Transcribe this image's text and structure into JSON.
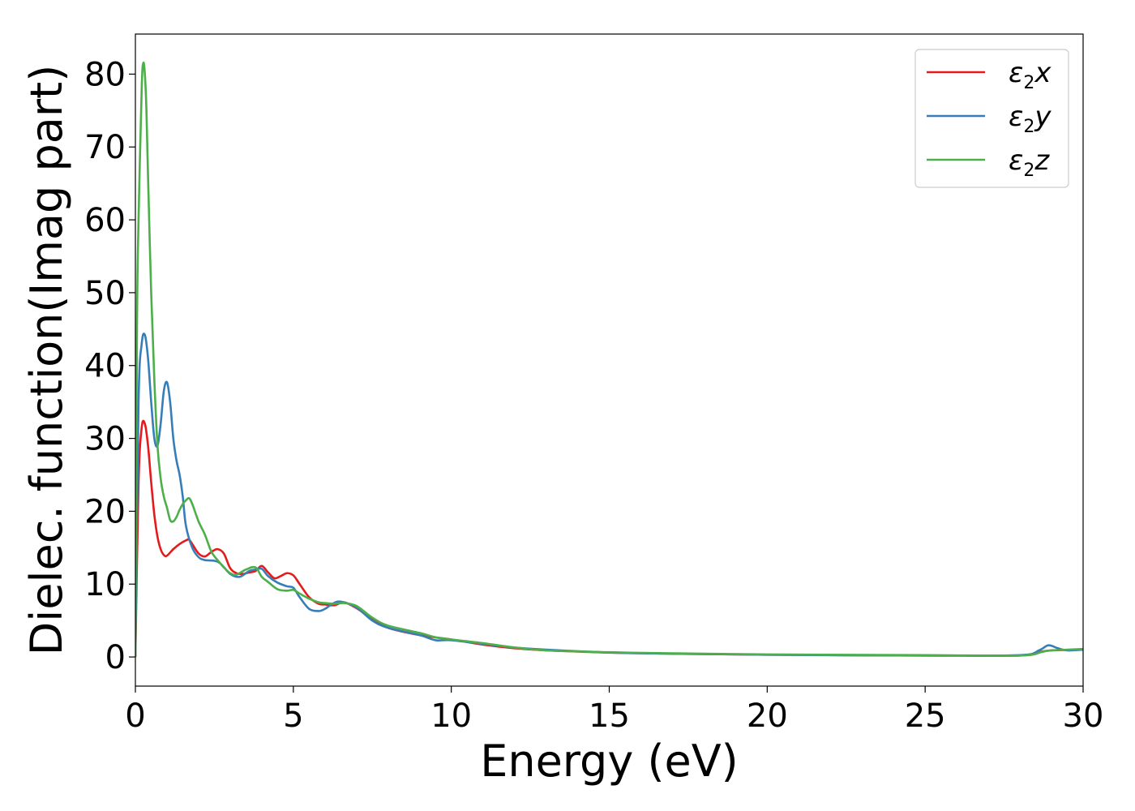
{
  "chart_data": {
    "type": "line",
    "title": "",
    "xlabel": "Energy (eV)",
    "ylabel": "Dielec. function(Imag part)",
    "xlim": [
      0,
      30
    ],
    "ylim": [
      -4,
      85.5
    ],
    "xticks": [
      0,
      5,
      10,
      15,
      20,
      25,
      30
    ],
    "yticks": [
      0,
      10,
      20,
      30,
      40,
      50,
      60,
      70,
      80
    ],
    "grid": false,
    "legend_position": "top-right",
    "series": [
      {
        "name": "ε2x",
        "legend": {
          "sym": "ε",
          "sub": "2",
          "axis": "x"
        },
        "color": "#e41a1c",
        "x": [
          0,
          0.1,
          0.2,
          0.3,
          0.4,
          0.5,
          0.6,
          0.7,
          0.8,
          0.9,
          1.0,
          1.2,
          1.4,
          1.6,
          1.7,
          1.8,
          2.0,
          2.2,
          2.4,
          2.6,
          2.8,
          3.0,
          3.2,
          3.4,
          3.6,
          3.8,
          4.0,
          4.2,
          4.4,
          4.6,
          4.8,
          5.0,
          5.2,
          5.5,
          5.8,
          6.0,
          6.3,
          6.6,
          7.0,
          7.5,
          8.0,
          9.0,
          10.0,
          11.0,
          12.0,
          13.0,
          15.0,
          17.0,
          20.0,
          25.0,
          28.0,
          28.5,
          29.0,
          30.0
        ],
        "y": [
          0,
          24,
          31.5,
          32,
          29,
          24,
          19.5,
          16.5,
          14.8,
          14,
          13.9,
          14.8,
          15.5,
          16,
          16.1,
          15.5,
          14.2,
          13.8,
          14.4,
          14.8,
          14.2,
          12.2,
          11.5,
          11.4,
          11.6,
          11.8,
          12.5,
          11.6,
          10.8,
          11.1,
          11.5,
          11.2,
          10.0,
          8.2,
          7.3,
          7.2,
          7.1,
          7.5,
          6.7,
          5.2,
          4.0,
          3.0,
          2.4,
          1.7,
          1.2,
          0.9,
          0.6,
          0.45,
          0.3,
          0.2,
          0.2,
          0.6,
          0.9,
          1.0
        ]
      },
      {
        "name": "ε2y",
        "legend": {
          "sym": "ε",
          "sub": "2",
          "axis": "y"
        },
        "color": "#377eb8",
        "x": [
          0,
          0.1,
          0.2,
          0.3,
          0.4,
          0.5,
          0.6,
          0.7,
          0.8,
          0.9,
          1.0,
          1.1,
          1.2,
          1.3,
          1.4,
          1.5,
          1.6,
          1.8,
          2.0,
          2.2,
          2.5,
          2.7,
          3.0,
          3.3,
          3.6,
          3.8,
          4.0,
          4.2,
          4.5,
          4.8,
          5.0,
          5.2,
          5.5,
          5.8,
          6.0,
          6.2,
          6.4,
          6.6,
          7.0,
          7.5,
          8.0,
          9.0,
          9.5,
          10.0,
          11.0,
          12.0,
          13.0,
          15.0,
          17.0,
          20.0,
          25.0,
          28.0,
          28.6,
          28.9,
          29.2,
          29.5,
          30.0
        ],
        "y": [
          0,
          35,
          43,
          44.2,
          41,
          35,
          30,
          29,
          32,
          36.5,
          37.7,
          35,
          30,
          27,
          25,
          22,
          18,
          15,
          13.7,
          13.3,
          13.2,
          12.8,
          11.4,
          11.0,
          11.8,
          12.0,
          12.1,
          11.1,
          10.2,
          9.7,
          9.5,
          8.2,
          6.6,
          6.3,
          6.6,
          7.2,
          7.6,
          7.5,
          6.8,
          5.0,
          4.0,
          3.0,
          2.3,
          2.3,
          1.8,
          1.3,
          1.0,
          0.6,
          0.45,
          0.3,
          0.2,
          0.25,
          0.9,
          1.6,
          1.2,
          0.9,
          1.0
        ]
      },
      {
        "name": "ε2z",
        "legend": {
          "sym": "ε",
          "sub": "2",
          "axis": "z"
        },
        "color": "#4daf4a",
        "x": [
          0,
          0.05,
          0.1,
          0.2,
          0.25,
          0.3,
          0.35,
          0.4,
          0.5,
          0.6,
          0.7,
          0.8,
          0.9,
          1.0,
          1.1,
          1.2,
          1.3,
          1.4,
          1.5,
          1.6,
          1.7,
          1.8,
          2.0,
          2.2,
          2.4,
          2.6,
          2.8,
          3.0,
          3.2,
          3.5,
          3.8,
          4.0,
          4.2,
          4.5,
          4.8,
          5.0,
          5.2,
          5.5,
          5.8,
          6.0,
          6.3,
          6.6,
          7.0,
          7.5,
          8.0,
          9.0,
          9.5,
          10.0,
          11.0,
          12.0,
          13.0,
          15.0,
          17.0,
          20.0,
          25.0,
          28.0,
          28.7,
          29.0,
          30.0
        ],
        "y": [
          0,
          45,
          60,
          78,
          81.5,
          80,
          75,
          66,
          50,
          38,
          29,
          24.5,
          22,
          20.5,
          18.8,
          18.6,
          19.2,
          20.2,
          21.0,
          21.5,
          21.8,
          21.0,
          18.6,
          16.8,
          14.5,
          13.3,
          12.3,
          11.5,
          11.3,
          12.0,
          12.3,
          11.0,
          10.3,
          9.3,
          9.1,
          9.2,
          8.7,
          8.0,
          7.5,
          7.4,
          7.3,
          7.4,
          7.0,
          5.4,
          4.3,
          3.3,
          2.7,
          2.4,
          1.9,
          1.3,
          0.9,
          0.65,
          0.5,
          0.35,
          0.25,
          0.2,
          0.7,
          0.9,
          1.1
        ]
      }
    ]
  }
}
